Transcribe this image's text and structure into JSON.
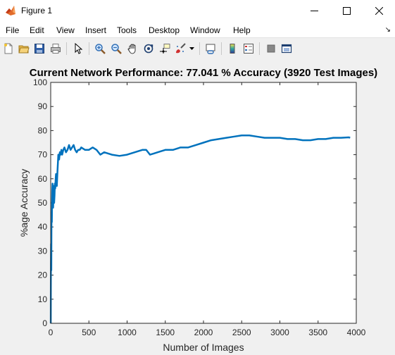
{
  "window": {
    "title": "Figure 1",
    "icon": "matlab-icon",
    "controls": [
      "minimize-icon",
      "maximize-icon",
      "close-icon"
    ]
  },
  "menu": {
    "items": [
      "File",
      "Edit",
      "View",
      "Insert",
      "Tools",
      "Desktop",
      "Window",
      "Help"
    ]
  },
  "toolbar": {
    "buttons": [
      "new-figure-icon",
      "open-file-icon",
      "save-icon",
      "print-icon",
      "pointer-icon",
      "zoom-in-icon",
      "zoom-out-icon",
      "pan-icon",
      "rotate-3d-icon",
      "data-cursor-icon",
      "brush-icon",
      "brush-dropdown-icon",
      "link-plot-icon",
      "insert-colorbar-icon",
      "insert-legend-icon",
      "hide-plot-tools-icon",
      "show-plot-tools-icon"
    ]
  },
  "chart_data": {
    "type": "line",
    "title": "Current Network Performance: 77.041 % Accuracy (3920 Test Images)",
    "xlabel": "Number of Images",
    "ylabel": "%age Accuracy",
    "xlim": [
      0,
      4000
    ],
    "ylim": [
      0,
      100
    ],
    "xticks": [
      0,
      500,
      1000,
      1500,
      2000,
      2500,
      3000,
      3500,
      4000
    ],
    "yticks": [
      0,
      10,
      20,
      30,
      40,
      50,
      60,
      70,
      80,
      90,
      100
    ],
    "grid": false,
    "color": "#0072bd",
    "series": [
      {
        "x": [
          1,
          2,
          3,
          5,
          8,
          10,
          12,
          15,
          18,
          20,
          24,
          28,
          32,
          36,
          40,
          45,
          50,
          55,
          60,
          65,
          70,
          80,
          90,
          100,
          110,
          120,
          130,
          140,
          150,
          165,
          180,
          200,
          220,
          240,
          260,
          280,
          300,
          320,
          340,
          360,
          380,
          400,
          450,
          500,
          550,
          600,
          650,
          700,
          800,
          900,
          1000,
          1100,
          1200,
          1250,
          1300,
          1350,
          1400,
          1500,
          1600,
          1700,
          1800,
          1900,
          2000,
          2100,
          2200,
          2300,
          2400,
          2500,
          2600,
          2700,
          2800,
          2900,
          3000,
          3100,
          3200,
          3300,
          3400,
          3500,
          3600,
          3700,
          3800,
          3900,
          3920
        ],
        "y": [
          0,
          15,
          25,
          33,
          22,
          40,
          46,
          42,
          50,
          55,
          58,
          52,
          48,
          54,
          57,
          50,
          53,
          58,
          56,
          60,
          62,
          57,
          64,
          70,
          68,
          71,
          70,
          72,
          70,
          72,
          73,
          71,
          72,
          74,
          72,
          73,
          74,
          72,
          71,
          72,
          72,
          73,
          72,
          72,
          73,
          72,
          70,
          71,
          70,
          69.5,
          70,
          71,
          72,
          72,
          70,
          70.5,
          71,
          72,
          72,
          73,
          73,
          74,
          75,
          76,
          76.5,
          77,
          77.5,
          78,
          78,
          77.5,
          77,
          77,
          77,
          76.5,
          76.5,
          76,
          76,
          76.5,
          76.5,
          77,
          77,
          77.2,
          77.04
        ]
      }
    ]
  }
}
